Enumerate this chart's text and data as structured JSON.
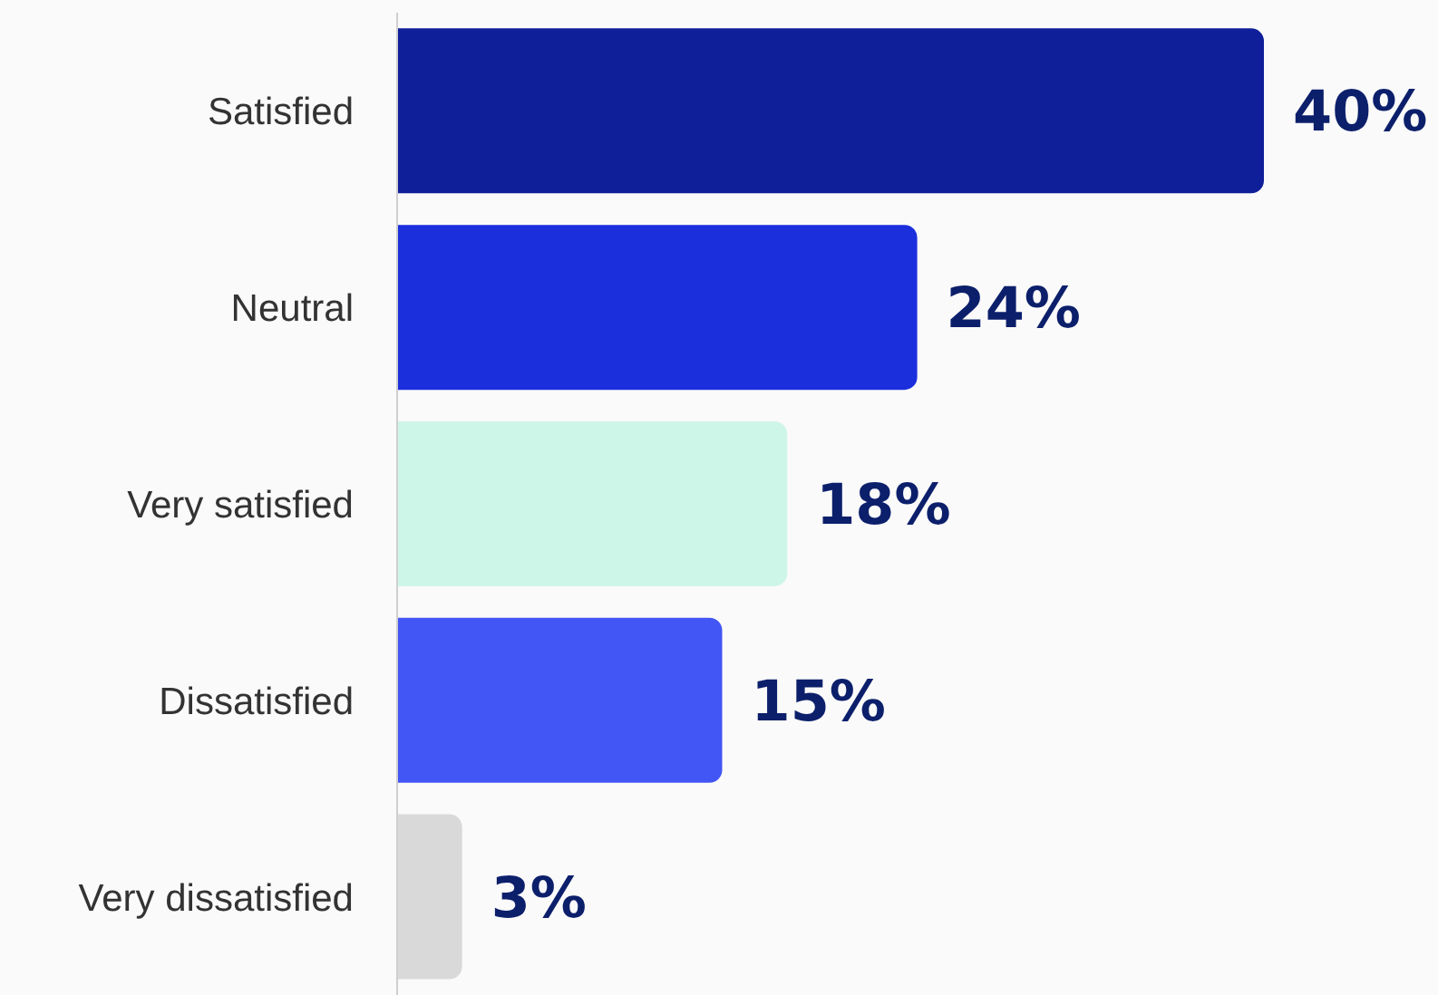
{
  "chart_data": {
    "type": "bar",
    "orientation": "horizontal",
    "tick_labels": "y",
    "categories": [
      "Satisfied",
      "Neutral",
      "Very satisfied",
      "Dissatisfied",
      "Very dissatisfied"
    ],
    "values": [
      40,
      24,
      18,
      15,
      3
    ],
    "value_labels": [
      "40%",
      "24%",
      "18%",
      "15%",
      "3%"
    ],
    "colors": [
      "#0f1f99",
      "#1b2fdc",
      "#cdf5e8",
      "#4256f5",
      "#d9d9d9"
    ],
    "grid": false,
    "legend": false
  }
}
